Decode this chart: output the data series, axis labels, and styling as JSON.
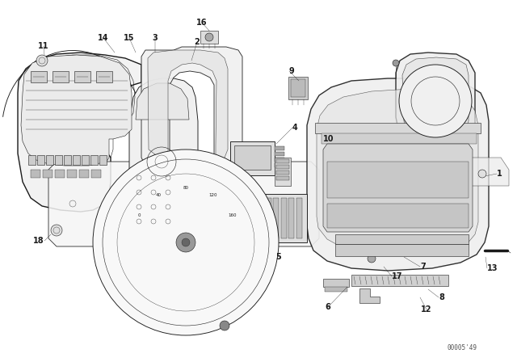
{
  "background_color": "#ffffff",
  "line_color": "#1a1a1a",
  "text_color": "#1a1a1a",
  "diagram_code": "00005'49",
  "figsize": [
    6.4,
    4.48
  ],
  "dpi": 100,
  "lw_heavy": 1.0,
  "lw_med": 0.65,
  "lw_thin": 0.4,
  "lw_fine": 0.25
}
